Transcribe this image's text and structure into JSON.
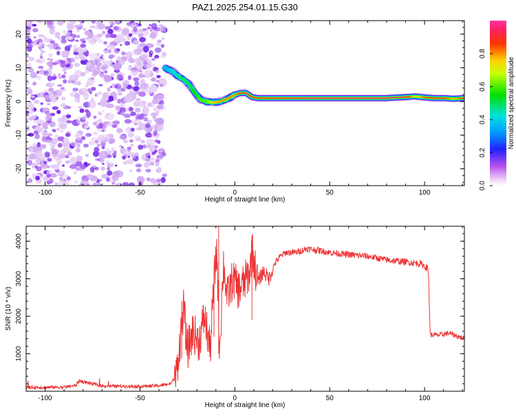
{
  "title": "PAZ1.2025.254.01.15.G30",
  "chart_data": [
    {
      "type": "heatmap",
      "xlabel": "Height of straight line (km)",
      "ylabel": "Frequency (Hz)",
      "xlim": [
        -110,
        121
      ],
      "ylim": [
        -25,
        24
      ],
      "xticks": [
        -100,
        -50,
        0,
        50,
        100
      ],
      "xticklabels": [
        "-100",
        "-50",
        "0",
        "50",
        "100"
      ],
      "yticks": [
        -20,
        -10,
        0,
        10,
        20
      ],
      "yticklabels": [
        "-20",
        "-10",
        "0",
        "10",
        "20"
      ],
      "colorbar": {
        "label": "Normalized spectral amplitude",
        "range": [
          0,
          1
        ],
        "ticks": [
          0.0,
          0.2,
          0.4,
          0.6,
          0.8
        ],
        "ticklabels": [
          "0.0",
          "0.2",
          "0.4",
          "0.6",
          "0.8"
        ],
        "colormap": "rainbow (magenta-blue-cyan-green-yellow-red)"
      },
      "noise_region": {
        "x_from": -110,
        "x_to": -37,
        "freq_from": -25,
        "freq_to": 24,
        "amplitude": 0.1
      },
      "ridge": {
        "x": [
          -37,
          -33,
          -30,
          -27,
          -24,
          -21,
          -18,
          -15,
          -12,
          -9,
          -6,
          -3,
          0,
          3,
          6,
          9,
          12,
          20,
          40,
          60,
          80,
          90,
          95,
          100,
          105,
          110,
          115,
          121
        ],
        "freq": [
          10,
          9,
          7.5,
          6.5,
          5,
          2.5,
          0.5,
          0,
          -0.3,
          -0.2,
          0.3,
          1,
          2,
          2.5,
          2.5,
          1.3,
          1,
          1,
          1,
          1,
          1,
          1.3,
          1.5,
          1.2,
          1,
          1,
          0.8,
          1
        ],
        "amplitude": [
          0.35,
          0.4,
          0.45,
          0.5,
          0.5,
          0.55,
          0.6,
          0.6,
          0.75,
          0.8,
          0.8,
          0.8,
          0.8,
          0.9,
          0.95,
          0.85,
          0.9,
          0.9,
          0.95,
          0.95,
          0.95,
          0.95,
          0.7,
          0.85,
          0.9,
          0.9,
          0.75,
          0.9
        ]
      }
    },
    {
      "type": "line",
      "series": [
        {
          "name": "SNR",
          "color": "#ee3333"
        }
      ],
      "xlabel": "Height of straight line (km)",
      "ylabel": "SNR (10 * v/v)",
      "xlim": [
        -110,
        121
      ],
      "ylim": [
        0,
        4400
      ],
      "xticks": [
        -100,
        -50,
        0,
        50,
        100
      ],
      "xticklabels": [
        "-100",
        "-50",
        "0",
        "50",
        "100"
      ],
      "yticks": [
        1000,
        2000,
        3000,
        4000
      ],
      "yticklabels": [
        "1000",
        "2000",
        "3000",
        "4000"
      ],
      "x": [
        -110,
        -90,
        -84,
        -82,
        -70,
        -50,
        -40,
        -34,
        -31,
        -29,
        -27,
        -25,
        -22,
        -19,
        -16,
        -13,
        -11,
        -9.5,
        -8,
        -6,
        -4,
        -1,
        2,
        5,
        8,
        9,
        12,
        15,
        18,
        21,
        24,
        27,
        32,
        38,
        45,
        50,
        58,
        70,
        80,
        90,
        98,
        101,
        102,
        103,
        108,
        113,
        118,
        121
      ],
      "y": [
        100,
        110,
        150,
        280,
        140,
        130,
        150,
        200,
        400,
        1300,
        2200,
        1100,
        1600,
        1300,
        2000,
        1100,
        2900,
        3800,
        1100,
        3400,
        2500,
        3000,
        2700,
        2900,
        3200,
        3800,
        2900,
        3200,
        3000,
        3400,
        3600,
        3700,
        3700,
        3800,
        3750,
        3700,
        3650,
        3600,
        3500,
        3450,
        3400,
        3300,
        3250,
        1500,
        1500,
        1550,
        1450,
        1400
      ]
    }
  ]
}
